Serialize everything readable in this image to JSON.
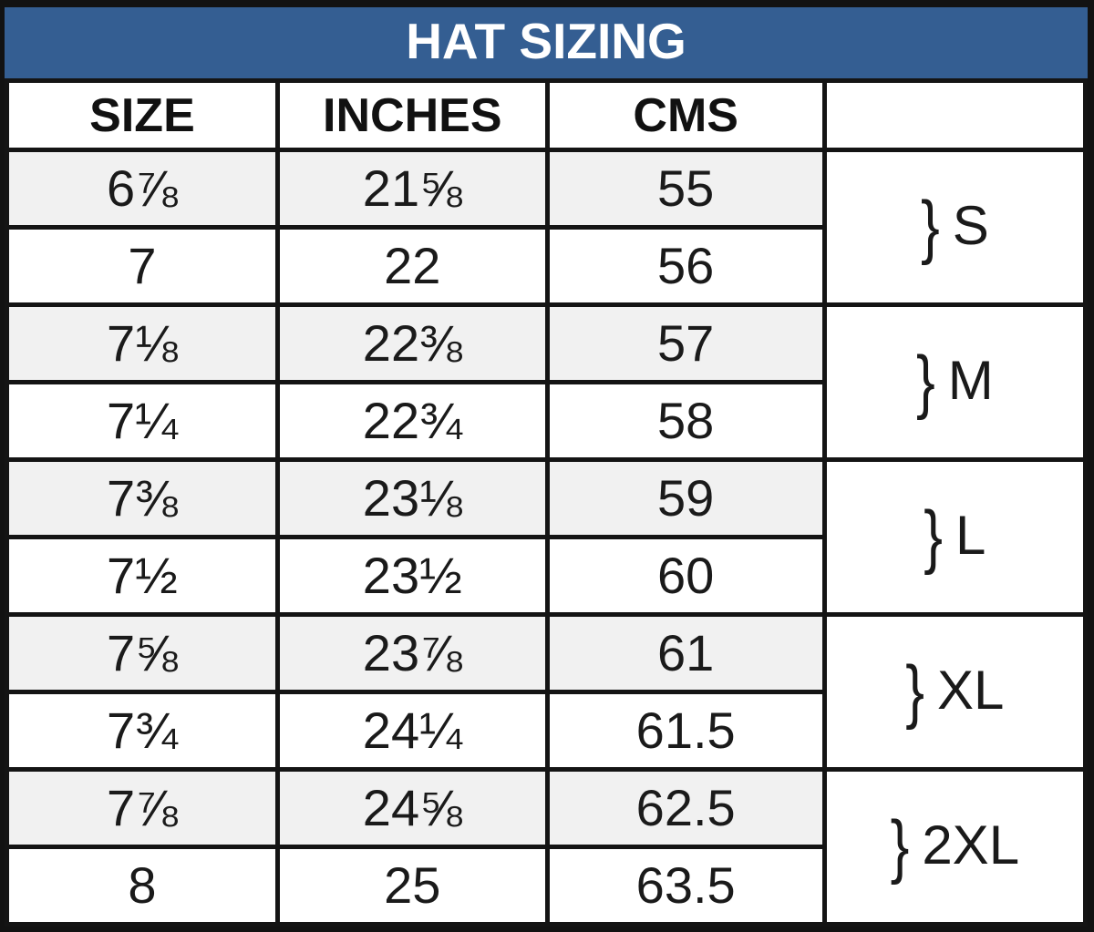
{
  "title": "HAT SIZING",
  "colors": {
    "title_bar_bg": "#345e92",
    "title_text": "#ffffff",
    "border": "#141414",
    "shaded_row_bg": "#f1f1f1",
    "row_bg": "#ffffff"
  },
  "chart_data": {
    "type": "table",
    "title": "HAT SIZING",
    "columns": [
      "SIZE",
      "INCHES",
      "CMS"
    ],
    "rows": [
      {
        "size": "6⅞",
        "inches": "21⅝",
        "cms": "55"
      },
      {
        "size": "7",
        "inches": "22",
        "cms": "56"
      },
      {
        "size": "7⅛",
        "inches": "22⅜",
        "cms": "57"
      },
      {
        "size": "7¼",
        "inches": "22¾",
        "cms": "58"
      },
      {
        "size": "7⅜",
        "inches": "23⅛",
        "cms": "59"
      },
      {
        "size": "7½",
        "inches": "23½",
        "cms": "60"
      },
      {
        "size": "7⅝",
        "inches": "23⅞",
        "cms": "61"
      },
      {
        "size": "7¾",
        "inches": "24¼",
        "cms": "61.5"
      },
      {
        "size": "7⅞",
        "inches": "24⅝",
        "cms": "62.5"
      },
      {
        "size": "8",
        "inches": "25",
        "cms": "63.5"
      }
    ],
    "groups": [
      {
        "brace": "}",
        "label": "S",
        "rows": [
          0,
          1
        ]
      },
      {
        "brace": "}",
        "label": "M",
        "rows": [
          2,
          3
        ]
      },
      {
        "brace": "}",
        "label": "L",
        "rows": [
          4,
          5
        ]
      },
      {
        "brace": "}",
        "label": "XL",
        "rows": [
          6,
          7
        ]
      },
      {
        "brace": "}",
        "label": "2XL",
        "rows": [
          8,
          9
        ]
      }
    ]
  }
}
